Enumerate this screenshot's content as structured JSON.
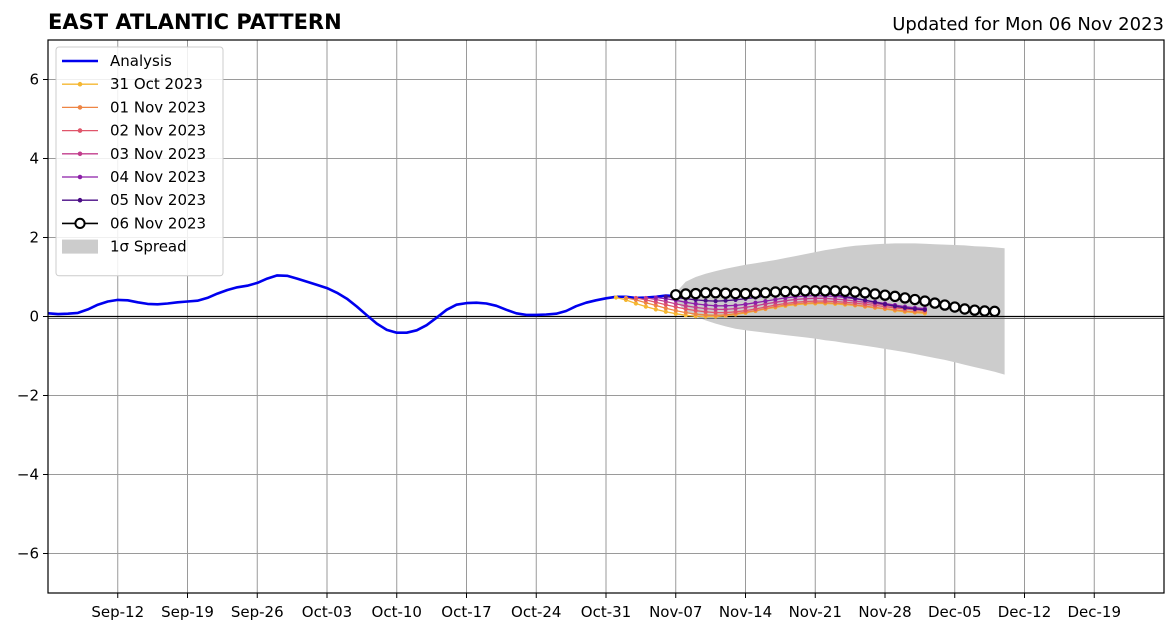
{
  "chart_data": {
    "type": "line",
    "title": "EAST ATLANTIC PATTERN",
    "subtitle": "Updated for Mon 06 Nov 2023",
    "xlabel": "",
    "ylabel": "",
    "x_start": "2023-09-05",
    "x_end": "2023-12-26",
    "ylim": [
      -7,
      7
    ],
    "yticks": [
      -6,
      -4,
      -2,
      0,
      2,
      4,
      6
    ],
    "ytick_labels": [
      "−6",
      "−4",
      "−2",
      "0",
      "2",
      "4",
      "6"
    ],
    "xticks": [
      "2023-09-12",
      "2023-09-19",
      "2023-09-26",
      "2023-10-03",
      "2023-10-10",
      "2023-10-17",
      "2023-10-24",
      "2023-10-31",
      "2023-11-07",
      "2023-11-14",
      "2023-11-21",
      "2023-11-28",
      "2023-12-05",
      "2023-12-12",
      "2023-12-19"
    ],
    "xtick_labels": [
      "Sep-12",
      "Sep-19",
      "Sep-26",
      "Oct-03",
      "Oct-10",
      "Oct-17",
      "Oct-24",
      "Oct-31",
      "Nov-07",
      "Nov-14",
      "Nov-21",
      "Nov-28",
      "Dec-05",
      "Dec-12",
      "Dec-19"
    ],
    "grid": true,
    "legend_position": "top-left",
    "zero_line": 0,
    "analysis": {
      "name": "Analysis",
      "color": "#0000ee",
      "start_date": "2023-09-05",
      "values": [
        0.08,
        0.06,
        0.07,
        0.09,
        0.18,
        0.3,
        0.38,
        0.42,
        0.41,
        0.36,
        0.32,
        0.31,
        0.33,
        0.36,
        0.38,
        0.4,
        0.47,
        0.58,
        0.67,
        0.74,
        0.78,
        0.85,
        0.96,
        1.04,
        1.03,
        0.96,
        0.88,
        0.8,
        0.72,
        0.6,
        0.45,
        0.25,
        0.03,
        -0.18,
        -0.34,
        -0.41,
        -0.41,
        -0.35,
        -0.22,
        -0.03,
        0.17,
        0.3,
        0.34,
        0.35,
        0.33,
        0.27,
        0.17,
        0.08,
        0.04,
        0.04,
        0.05,
        0.07,
        0.14,
        0.26,
        0.35,
        0.41,
        0.46,
        0.5,
        0.5,
        0.47,
        0.48,
        0.5,
        0.53,
        0.52
      ]
    },
    "forecasts": [
      {
        "name": "31 Oct 2023",
        "color": "#f5b731",
        "start_date": "2023-11-01",
        "values": [
          0.48,
          0.42,
          0.33,
          0.25,
          0.18,
          0.12,
          0.07,
          0.03,
          0.01,
          0.0,
          0.0,
          0.02,
          0.05,
          0.09,
          0.14,
          0.19,
          0.23,
          0.27,
          0.3,
          0.32,
          0.33,
          0.33,
          0.32,
          0.3,
          0.28,
          0.25,
          0.22,
          0.19,
          0.15,
          0.12,
          0.1,
          0.08
        ]
      },
      {
        "name": "01 Nov 2023",
        "color": "#ee8544",
        "start_date": "2023-11-02",
        "values": [
          0.47,
          0.42,
          0.35,
          0.28,
          0.21,
          0.15,
          0.1,
          0.06,
          0.04,
          0.03,
          0.04,
          0.07,
          0.11,
          0.15,
          0.2,
          0.25,
          0.29,
          0.32,
          0.34,
          0.35,
          0.35,
          0.34,
          0.32,
          0.29,
          0.26,
          0.23,
          0.2,
          0.17,
          0.14,
          0.12,
          0.11
        ]
      },
      {
        "name": "02 Nov 2023",
        "color": "#e0556a",
        "start_date": "2023-11-03",
        "values": [
          0.47,
          0.42,
          0.36,
          0.3,
          0.24,
          0.19,
          0.15,
          0.12,
          0.1,
          0.1,
          0.12,
          0.15,
          0.19,
          0.24,
          0.29,
          0.33,
          0.36,
          0.38,
          0.39,
          0.39,
          0.38,
          0.36,
          0.34,
          0.31,
          0.28,
          0.25,
          0.22,
          0.19,
          0.17,
          0.15
        ]
      },
      {
        "name": "03 Nov 2023",
        "color": "#c23d8c",
        "start_date": "2023-11-04",
        "values": [
          0.47,
          0.43,
          0.38,
          0.32,
          0.27,
          0.23,
          0.2,
          0.18,
          0.18,
          0.2,
          0.23,
          0.27,
          0.32,
          0.36,
          0.4,
          0.43,
          0.45,
          0.46,
          0.46,
          0.44,
          0.42,
          0.39,
          0.36,
          0.33,
          0.29,
          0.26,
          0.23,
          0.2,
          0.18
        ]
      },
      {
        "name": "04 Nov 2023",
        "color": "#8c1fa8",
        "start_date": "2023-11-05",
        "values": [
          0.48,
          0.45,
          0.41,
          0.36,
          0.32,
          0.29,
          0.27,
          0.27,
          0.28,
          0.31,
          0.35,
          0.39,
          0.43,
          0.47,
          0.5,
          0.52,
          0.53,
          0.52,
          0.51,
          0.48,
          0.45,
          0.41,
          0.37,
          0.33,
          0.29,
          0.25,
          0.22,
          0.2
        ]
      },
      {
        "name": "05 Nov 2023",
        "color": "#4a0c86",
        "start_date": "2023-11-06",
        "values": [
          0.5,
          0.48,
          0.45,
          0.42,
          0.4,
          0.39,
          0.4,
          0.42,
          0.45,
          0.48,
          0.52,
          0.55,
          0.58,
          0.6,
          0.61,
          0.6,
          0.58,
          0.55,
          0.51,
          0.46,
          0.41,
          0.36,
          0.31,
          0.26,
          0.22,
          0.19,
          0.17
        ]
      },
      {
        "name": "06 Nov 2023",
        "color": "#000000",
        "marker": "open-circle",
        "start_date": "2023-11-07",
        "values": [
          0.55,
          0.57,
          0.58,
          0.6,
          0.6,
          0.59,
          0.58,
          0.58,
          0.59,
          0.6,
          0.62,
          0.63,
          0.64,
          0.65,
          0.65,
          0.65,
          0.65,
          0.64,
          0.62,
          0.6,
          0.57,
          0.54,
          0.51,
          0.47,
          0.43,
          0.39,
          0.34,
          0.29,
          0.24,
          0.19,
          0.16,
          0.14,
          0.13
        ]
      }
    ],
    "spread": {
      "name": "1σ Spread",
      "color": "#cccccc",
      "start_date": "2023-11-07",
      "upper": [
        0.6,
        0.88,
        1.0,
        1.08,
        1.15,
        1.21,
        1.26,
        1.31,
        1.35,
        1.39,
        1.43,
        1.48,
        1.53,
        1.58,
        1.63,
        1.68,
        1.72,
        1.76,
        1.79,
        1.81,
        1.83,
        1.84,
        1.85,
        1.85,
        1.85,
        1.84,
        1.83,
        1.82,
        1.81,
        1.8,
        1.78,
        1.77,
        1.75,
        1.73
      ],
      "lower": [
        0.4,
        0.12,
        0.0,
        -0.1,
        -0.18,
        -0.25,
        -0.31,
        -0.35,
        -0.38,
        -0.41,
        -0.44,
        -0.47,
        -0.5,
        -0.53,
        -0.56,
        -0.6,
        -0.63,
        -0.67,
        -0.7,
        -0.74,
        -0.78,
        -0.82,
        -0.86,
        -0.9,
        -0.95,
        -1.0,
        -1.05,
        -1.1,
        -1.16,
        -1.22,
        -1.28,
        -1.34,
        -1.4,
        -1.47
      ]
    }
  }
}
